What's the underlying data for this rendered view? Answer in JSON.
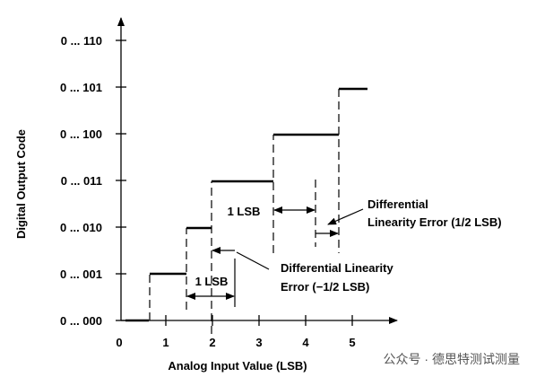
{
  "axes": {
    "y_title": "Digital Output Code",
    "x_title": "Analog Input Value (LSB)",
    "y_labels": [
      "0 ... 000",
      "0 ... 001",
      "0 ... 010",
      "0 ... 011",
      "0 ... 100",
      "0 ... 101",
      "0 ... 110"
    ],
    "x_labels": [
      "0",
      "1",
      "2",
      "3",
      "4",
      "5"
    ]
  },
  "annotations": {
    "lsb_lower": "1 LSB",
    "lsb_upper": "1 LSB",
    "dnl_positive": [
      "Differential",
      "Linearity Error (1/2 LSB)"
    ],
    "dnl_negative": [
      "Differential Linearity",
      "Error (−1/2 LSB)"
    ]
  },
  "watermark": "公众号 · 德思特测试测量"
}
